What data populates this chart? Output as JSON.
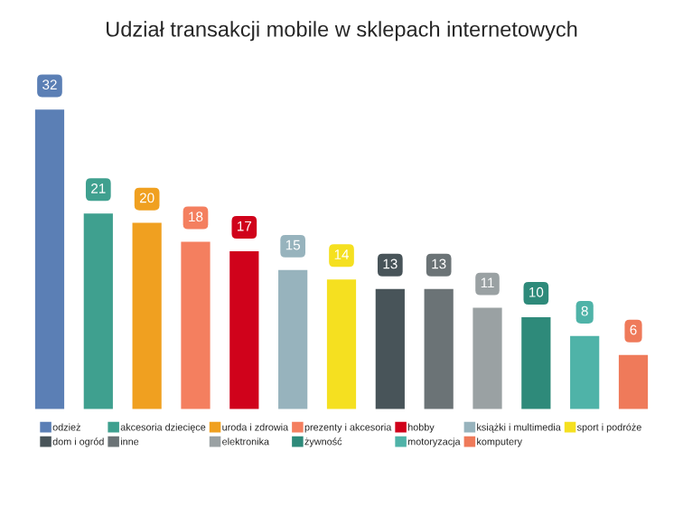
{
  "chart_data": {
    "type": "bar",
    "title": "Udział transakcji mobile w sklepach internetowych",
    "categories": [
      null,
      null,
      null,
      null,
      null,
      null,
      null,
      null,
      null,
      null,
      null,
      null,
      null
    ],
    "series": [
      {
        "name": "odzież",
        "color": "#5b7fb5",
        "values": [
          32,
          null,
          null,
          null,
          null,
          null,
          null,
          null,
          null,
          null,
          null,
          null,
          null
        ]
      },
      {
        "name": "akcesoria dziecięce",
        "color": "#3fa08f",
        "values": [
          null,
          21,
          null,
          null,
          null,
          null,
          null,
          null,
          null,
          null,
          null,
          null,
          null
        ]
      },
      {
        "name": "uroda i zdrowia",
        "color": "#f0a020",
        "values": [
          null,
          null,
          20,
          null,
          null,
          null,
          null,
          null,
          null,
          null,
          null,
          null,
          null
        ]
      },
      {
        "name": "prezenty i akcesoria",
        "color": "#f47f5f",
        "values": [
          null,
          null,
          null,
          18,
          null,
          null,
          null,
          null,
          null,
          null,
          null,
          null,
          null
        ]
      },
      {
        "name": "hobby",
        "color": "#d0021b",
        "values": [
          null,
          null,
          null,
          null,
          17,
          null,
          null,
          null,
          null,
          null,
          null,
          null,
          null
        ]
      },
      {
        "name": "książki i multimedia",
        "color": "#97b3bd",
        "values": [
          null,
          null,
          null,
          null,
          null,
          15,
          null,
          null,
          null,
          null,
          null,
          null,
          null
        ]
      },
      {
        "name": "sport i podróże",
        "color": "#f5e020",
        "values": [
          null,
          null,
          null,
          null,
          null,
          null,
          14,
          null,
          null,
          null,
          null,
          null,
          null
        ]
      },
      {
        "name": "dom i ogród",
        "color": "#485459",
        "values": [
          null,
          null,
          null,
          null,
          null,
          null,
          null,
          13,
          null,
          null,
          null,
          null,
          null
        ]
      },
      {
        "name": "inne",
        "color": "#6b7376",
        "values": [
          null,
          null,
          null,
          null,
          null,
          null,
          null,
          null,
          13,
          null,
          null,
          null,
          null
        ]
      },
      {
        "name": "elektronika",
        "color": "#9aa1a3",
        "values": [
          null,
          null,
          null,
          null,
          null,
          null,
          null,
          null,
          null,
          11,
          null,
          null,
          null
        ]
      },
      {
        "name": "żywność",
        "color": "#2e8a7a",
        "values": [
          null,
          null,
          null,
          null,
          null,
          null,
          null,
          null,
          null,
          null,
          10,
          null,
          null
        ]
      },
      {
        "name": "motoryzacja",
        "color": "#4fb3a8",
        "values": [
          null,
          null,
          null,
          null,
          null,
          null,
          null,
          null,
          null,
          null,
          null,
          8,
          null
        ]
      },
      {
        "name": "komputery",
        "color": "#ef7a5a",
        "values": [
          null,
          null,
          null,
          null,
          null,
          null,
          null,
          null,
          null,
          null,
          null,
          null,
          6
        ]
      }
    ],
    "stacked": true,
    "data_labels": true,
    "legend": "bottom",
    "grid": false,
    "tick_labels": false
  }
}
